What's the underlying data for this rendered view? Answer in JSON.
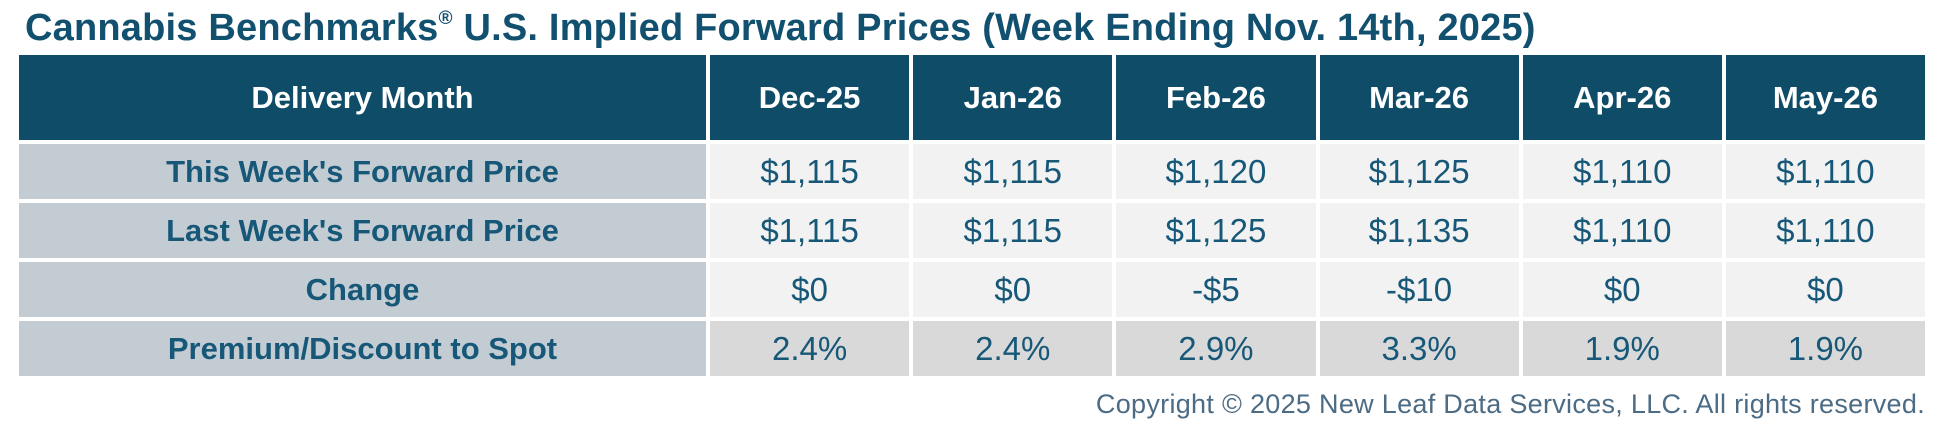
{
  "title": {
    "brand": "Cannabis Benchmarks",
    "registered_mark": "®",
    "rest": " U.S. Implied Forward Prices (Week Ending Nov. 14th, 2025)"
  },
  "chart_data": {
    "type": "table",
    "title": "Cannabis Benchmarks® U.S. Implied Forward Prices (Week Ending Nov. 14th, 2025)",
    "columns": [
      "Delivery Month",
      "Dec-25",
      "Jan-26",
      "Feb-26",
      "Mar-26",
      "Apr-26",
      "May-26"
    ],
    "rows": [
      {
        "label": "This Week's Forward Price",
        "values": [
          "$1,115",
          "$1,115",
          "$1,120",
          "$1,125",
          "$1,110",
          "$1,110"
        ]
      },
      {
        "label": "Last Week's Forward Price",
        "values": [
          "$1,115",
          "$1,115",
          "$1,125",
          "$1,135",
          "$1,110",
          "$1,110"
        ]
      },
      {
        "label": "Change",
        "values": [
          "$0",
          "$0",
          "-$5",
          "-$10",
          "$0",
          "$0"
        ]
      },
      {
        "label": "Premium/Discount to Spot",
        "values": [
          "2.4%",
          "2.4%",
          "2.9%",
          "3.3%",
          "1.9%",
          "1.9%"
        ]
      }
    ]
  },
  "footer": {
    "copyright": "Copyright © 2025 New Leaf Data Services, LLC. All rights reserved."
  },
  "colors": {
    "title_text": "#11506f",
    "header_bg": "#0e4c68",
    "header_text": "#ffffff",
    "label_cell_bg": "#c4ccd3",
    "value_cell_bg": "#f2f2f2",
    "premium_value_cell_bg": "#d9d9d9",
    "cell_text": "#175878",
    "footer_text": "#4c6b84",
    "page_bg": "#ffffff"
  }
}
